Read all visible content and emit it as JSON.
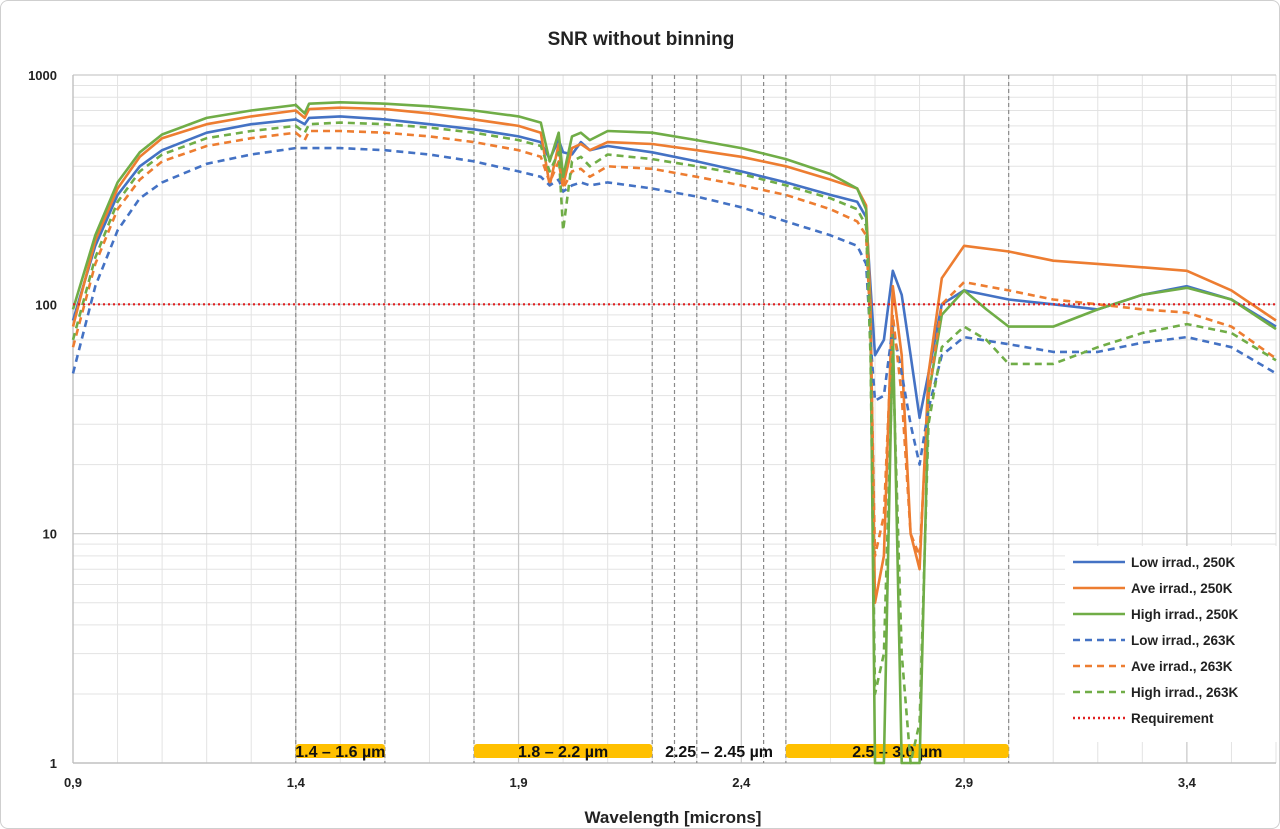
{
  "chart_data": {
    "type": "line",
    "title": "SNR without binning",
    "xlabel": "Wavelength [microns]",
    "ylabel": "",
    "xlim": [
      0.9,
      3.6
    ],
    "ylim": [
      1,
      1000
    ],
    "y_scale": "log",
    "x_ticks": [
      "0,9",
      "1,4",
      "1,9",
      "2,4",
      "2,9",
      "3,4"
    ],
    "y_ticks": [
      "1",
      "10",
      "100",
      "1000"
    ],
    "grid": true,
    "legend_position": "bottom-right",
    "vertical_markers": [
      1.4,
      1.6,
      1.8,
      2.2,
      2.25,
      2.3,
      2.45,
      2.5,
      3.0
    ],
    "bands": [
      {
        "label": "1.4 – 1.6 µm",
        "x0": 1.4,
        "x1": 1.6
      },
      {
        "label": "1.8 – 2.2 µm",
        "x0": 1.8,
        "x1": 2.2
      },
      {
        "label": "2.25 – 2.45 µm",
        "x0": 2.25,
        "x1": 2.45
      },
      {
        "label": "2.5 – 3.0 µm",
        "x0": 2.5,
        "x1": 3.0
      }
    ],
    "series": [
      {
        "name": "Low irrad., 250K",
        "color": "#4472c4",
        "dash": "solid",
        "points": [
          [
            0.9,
            85
          ],
          [
            0.95,
            180
          ],
          [
            1.0,
            300
          ],
          [
            1.05,
            400
          ],
          [
            1.1,
            470
          ],
          [
            1.2,
            560
          ],
          [
            1.3,
            610
          ],
          [
            1.4,
            640
          ],
          [
            1.42,
            610
          ],
          [
            1.43,
            650
          ],
          [
            1.5,
            660
          ],
          [
            1.6,
            640
          ],
          [
            1.7,
            610
          ],
          [
            1.8,
            580
          ],
          [
            1.9,
            540
          ],
          [
            1.95,
            510
          ],
          [
            1.97,
            430
          ],
          [
            1.99,
            520
          ],
          [
            2.0,
            460
          ],
          [
            2.02,
            450
          ],
          [
            2.04,
            510
          ],
          [
            2.06,
            470
          ],
          [
            2.1,
            490
          ],
          [
            2.2,
            460
          ],
          [
            2.3,
            420
          ],
          [
            2.4,
            380
          ],
          [
            2.5,
            340
          ],
          [
            2.6,
            300
          ],
          [
            2.66,
            280
          ],
          [
            2.68,
            240
          ],
          [
            2.69,
            120
          ],
          [
            2.7,
            60
          ],
          [
            2.72,
            70
          ],
          [
            2.74,
            140
          ],
          [
            2.76,
            110
          ],
          [
            2.78,
            60
          ],
          [
            2.8,
            32
          ],
          [
            2.82,
            50
          ],
          [
            2.85,
            100
          ],
          [
            2.9,
            115
          ],
          [
            3.0,
            105
          ],
          [
            3.1,
            100
          ],
          [
            3.2,
            95
          ],
          [
            3.3,
            110
          ],
          [
            3.4,
            120
          ],
          [
            3.5,
            105
          ],
          [
            3.6,
            80
          ]
        ]
      },
      {
        "name": "Ave irrad., 250K",
        "color": "#ed7d31",
        "dash": "solid",
        "points": [
          [
            0.9,
            80
          ],
          [
            0.95,
            190
          ],
          [
            1.0,
            320
          ],
          [
            1.05,
            440
          ],
          [
            1.1,
            530
          ],
          [
            1.2,
            610
          ],
          [
            1.3,
            660
          ],
          [
            1.4,
            700
          ],
          [
            1.42,
            650
          ],
          [
            1.43,
            710
          ],
          [
            1.5,
            720
          ],
          [
            1.6,
            710
          ],
          [
            1.7,
            680
          ],
          [
            1.8,
            640
          ],
          [
            1.9,
            600
          ],
          [
            1.95,
            560
          ],
          [
            1.97,
            330
          ],
          [
            1.99,
            500
          ],
          [
            2.0,
            330
          ],
          [
            2.02,
            480
          ],
          [
            2.04,
            500
          ],
          [
            2.06,
            470
          ],
          [
            2.1,
            510
          ],
          [
            2.2,
            500
          ],
          [
            2.3,
            470
          ],
          [
            2.4,
            440
          ],
          [
            2.5,
            400
          ],
          [
            2.6,
            350
          ],
          [
            2.66,
            320
          ],
          [
            2.68,
            270
          ],
          [
            2.69,
            100
          ],
          [
            2.7,
            5
          ],
          [
            2.72,
            8
          ],
          [
            2.74,
            120
          ],
          [
            2.76,
            60
          ],
          [
            2.78,
            10
          ],
          [
            2.8,
            7
          ],
          [
            2.82,
            50
          ],
          [
            2.85,
            130
          ],
          [
            2.9,
            180
          ],
          [
            3.0,
            170
          ],
          [
            3.1,
            155
          ],
          [
            3.2,
            150
          ],
          [
            3.3,
            145
          ],
          [
            3.4,
            140
          ],
          [
            3.5,
            115
          ],
          [
            3.6,
            85
          ]
        ]
      },
      {
        "name": "High irrad., 250K",
        "color": "#70ad47",
        "dash": "solid",
        "points": [
          [
            0.9,
            95
          ],
          [
            0.95,
            200
          ],
          [
            1.0,
            340
          ],
          [
            1.05,
            460
          ],
          [
            1.1,
            550
          ],
          [
            1.2,
            650
          ],
          [
            1.3,
            700
          ],
          [
            1.4,
            740
          ],
          [
            1.42,
            680
          ],
          [
            1.43,
            750
          ],
          [
            1.5,
            760
          ],
          [
            1.6,
            750
          ],
          [
            1.7,
            730
          ],
          [
            1.8,
            700
          ],
          [
            1.9,
            660
          ],
          [
            1.95,
            620
          ],
          [
            1.97,
            420
          ],
          [
            1.99,
            560
          ],
          [
            2.0,
            360
          ],
          [
            2.02,
            540
          ],
          [
            2.04,
            560
          ],
          [
            2.06,
            520
          ],
          [
            2.1,
            570
          ],
          [
            2.2,
            560
          ],
          [
            2.3,
            520
          ],
          [
            2.4,
            480
          ],
          [
            2.5,
            430
          ],
          [
            2.6,
            370
          ],
          [
            2.66,
            320
          ],
          [
            2.68,
            260
          ],
          [
            2.69,
            80
          ],
          [
            2.7,
            1
          ],
          [
            2.72,
            1
          ],
          [
            2.74,
            80
          ],
          [
            2.76,
            1
          ],
          [
            2.78,
            1
          ],
          [
            2.8,
            1
          ],
          [
            2.82,
            40
          ],
          [
            2.85,
            90
          ],
          [
            2.9,
            115
          ],
          [
            2.95,
            95
          ],
          [
            3.0,
            80
          ],
          [
            3.1,
            80
          ],
          [
            3.2,
            95
          ],
          [
            3.3,
            110
          ],
          [
            3.4,
            118
          ],
          [
            3.5,
            105
          ],
          [
            3.6,
            78
          ]
        ]
      },
      {
        "name": "Low irrad., 263K",
        "color": "#4472c4",
        "dash": "dashed",
        "points": [
          [
            0.9,
            50
          ],
          [
            0.95,
            120
          ],
          [
            1.0,
            210
          ],
          [
            1.05,
            290
          ],
          [
            1.1,
            340
          ],
          [
            1.2,
            410
          ],
          [
            1.3,
            450
          ],
          [
            1.4,
            480
          ],
          [
            1.5,
            480
          ],
          [
            1.6,
            470
          ],
          [
            1.7,
            450
          ],
          [
            1.8,
            420
          ],
          [
            1.9,
            380
          ],
          [
            1.95,
            360
          ],
          [
            1.97,
            330
          ],
          [
            1.99,
            350
          ],
          [
            2.0,
            310
          ],
          [
            2.02,
            330
          ],
          [
            2.04,
            340
          ],
          [
            2.06,
            330
          ],
          [
            2.1,
            340
          ],
          [
            2.2,
            320
          ],
          [
            2.3,
            295
          ],
          [
            2.4,
            265
          ],
          [
            2.5,
            230
          ],
          [
            2.6,
            200
          ],
          [
            2.66,
            180
          ],
          [
            2.68,
            150
          ],
          [
            2.69,
            70
          ],
          [
            2.7,
            38
          ],
          [
            2.72,
            40
          ],
          [
            2.74,
            80
          ],
          [
            2.76,
            50
          ],
          [
            2.78,
            30
          ],
          [
            2.8,
            20
          ],
          [
            2.82,
            35
          ],
          [
            2.85,
            60
          ],
          [
            2.9,
            72
          ],
          [
            3.0,
            67
          ],
          [
            3.1,
            62
          ],
          [
            3.2,
            62
          ],
          [
            3.3,
            68
          ],
          [
            3.4,
            72
          ],
          [
            3.5,
            65
          ],
          [
            3.6,
            50
          ]
        ]
      },
      {
        "name": "Ave irrad., 263K",
        "color": "#ed7d31",
        "dash": "dashed",
        "points": [
          [
            0.9,
            65
          ],
          [
            0.95,
            150
          ],
          [
            1.0,
            260
          ],
          [
            1.05,
            350
          ],
          [
            1.1,
            420
          ],
          [
            1.2,
            490
          ],
          [
            1.3,
            530
          ],
          [
            1.4,
            560
          ],
          [
            1.42,
            520
          ],
          [
            1.43,
            570
          ],
          [
            1.5,
            570
          ],
          [
            1.6,
            560
          ],
          [
            1.7,
            540
          ],
          [
            1.8,
            510
          ],
          [
            1.9,
            470
          ],
          [
            1.95,
            440
          ],
          [
            1.97,
            340
          ],
          [
            1.99,
            420
          ],
          [
            2.0,
            320
          ],
          [
            2.02,
            380
          ],
          [
            2.04,
            390
          ],
          [
            2.06,
            360
          ],
          [
            2.1,
            400
          ],
          [
            2.2,
            390
          ],
          [
            2.3,
            360
          ],
          [
            2.4,
            330
          ],
          [
            2.5,
            300
          ],
          [
            2.6,
            260
          ],
          [
            2.66,
            230
          ],
          [
            2.68,
            200
          ],
          [
            2.69,
            80
          ],
          [
            2.7,
            8
          ],
          [
            2.72,
            12
          ],
          [
            2.74,
            90
          ],
          [
            2.76,
            40
          ],
          [
            2.78,
            10
          ],
          [
            2.8,
            8
          ],
          [
            2.82,
            40
          ],
          [
            2.85,
            100
          ],
          [
            2.9,
            125
          ],
          [
            3.0,
            115
          ],
          [
            3.1,
            105
          ],
          [
            3.2,
            100
          ],
          [
            3.3,
            95
          ],
          [
            3.4,
            92
          ],
          [
            3.5,
            80
          ],
          [
            3.6,
            58
          ]
        ]
      },
      {
        "name": "High irrad., 263K",
        "color": "#70ad47",
        "dash": "dashed",
        "points": [
          [
            0.9,
            70
          ],
          [
            0.95,
            160
          ],
          [
            1.0,
            280
          ],
          [
            1.05,
            380
          ],
          [
            1.1,
            450
          ],
          [
            1.2,
            530
          ],
          [
            1.3,
            570
          ],
          [
            1.4,
            600
          ],
          [
            1.42,
            560
          ],
          [
            1.43,
            610
          ],
          [
            1.5,
            620
          ],
          [
            1.6,
            610
          ],
          [
            1.7,
            590
          ],
          [
            1.8,
            560
          ],
          [
            1.9,
            520
          ],
          [
            1.95,
            490
          ],
          [
            1.97,
            380
          ],
          [
            1.99,
            460
          ],
          [
            2.0,
            210
          ],
          [
            2.02,
            420
          ],
          [
            2.04,
            440
          ],
          [
            2.06,
            400
          ],
          [
            2.1,
            450
          ],
          [
            2.2,
            430
          ],
          [
            2.3,
            400
          ],
          [
            2.4,
            370
          ],
          [
            2.5,
            330
          ],
          [
            2.6,
            290
          ],
          [
            2.66,
            260
          ],
          [
            2.68,
            220
          ],
          [
            2.69,
            60
          ],
          [
            2.7,
            2
          ],
          [
            2.72,
            3
          ],
          [
            2.74,
            60
          ],
          [
            2.76,
            3
          ],
          [
            2.78,
            1
          ],
          [
            2.8,
            1.5
          ],
          [
            2.82,
            30
          ],
          [
            2.85,
            65
          ],
          [
            2.9,
            80
          ],
          [
            2.95,
            70
          ],
          [
            3.0,
            55
          ],
          [
            3.1,
            55
          ],
          [
            3.2,
            65
          ],
          [
            3.3,
            75
          ],
          [
            3.4,
            82
          ],
          [
            3.5,
            75
          ],
          [
            3.6,
            57
          ]
        ]
      },
      {
        "name": "Requirement",
        "color": "#e02020",
        "dash": "dotted",
        "points": [
          [
            0.9,
            100
          ],
          [
            3.6,
            100
          ]
        ]
      }
    ]
  }
}
